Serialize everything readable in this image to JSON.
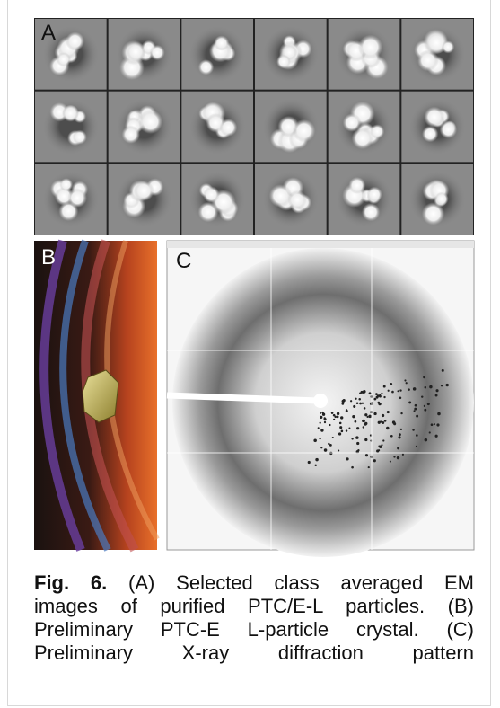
{
  "panels": {
    "a": "A",
    "b": "B",
    "c": "C"
  },
  "caption": {
    "label": "Fig. 6.",
    "lines": [
      "(A) Selected class averaged EM",
      "images of purified PTC/E-L particles. (B)",
      "Preliminary PTC-E L-particle crystal. (C)",
      "Preliminary X-ray diffraction pattern"
    ]
  }
}
